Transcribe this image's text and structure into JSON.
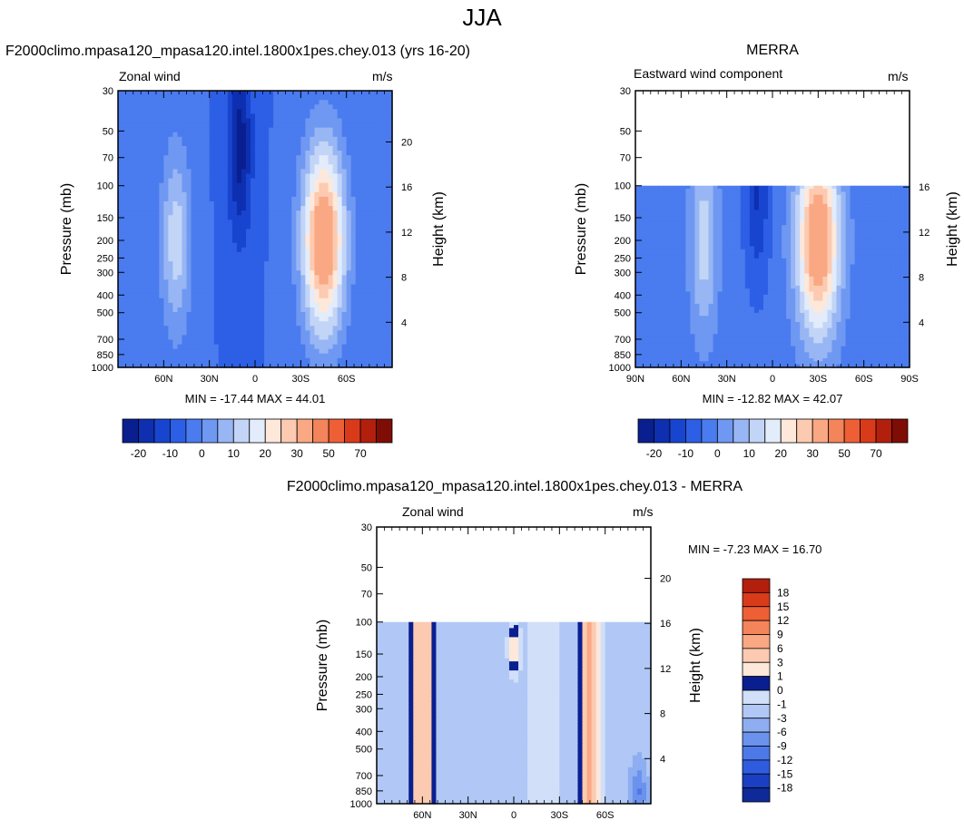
{
  "figure": {
    "title": "JJA",
    "colors": {
      "cold": [
        "#0a1f8f",
        "#0d2fb0",
        "#1845cf",
        "#2d5fe6",
        "#4a7bef",
        "#6f98f2",
        "#98b6f4",
        "#c2d5f7",
        "#e3ecfb"
      ],
      "warm": [
        "#fde8da",
        "#fccab0",
        "#f9a883",
        "#f4845a",
        "#ee5f35",
        "#d93b1a",
        "#b21f0c",
        "#7e0d05"
      ]
    }
  },
  "chart_data": [
    {
      "id": "p1",
      "type": "contour",
      "title": "F2000climo.mpasa120_mpasa120.intel.1800x1pes.chey.013 (yrs 16-20)",
      "left_string": "Zonal wind",
      "right_string": "m/s",
      "ylabel": "Pressure (mb)",
      "y2label": "Height (km)",
      "xlim": [
        90,
        -90
      ],
      "ylim": [
        1000,
        30
      ],
      "x_ticks": [
        60,
        30,
        0,
        -30,
        -60
      ],
      "x_tick_labels": [
        "60N",
        "30N",
        "0",
        "30S",
        "60S"
      ],
      "y_ticks": [
        30,
        50,
        70,
        100,
        150,
        200,
        250,
        300,
        400,
        500,
        700,
        850,
        1000
      ],
      "y_tick_labels": [
        "30",
        "50",
        "70",
        "100",
        "150",
        "200",
        "250",
        "300",
        "400",
        "500",
        "700",
        "850",
        "1000"
      ],
      "height_ticks": [
        20,
        16,
        12,
        8,
        4
      ],
      "height_tick_labels": [
        "20",
        "16",
        "12",
        "8",
        "4"
      ],
      "data_top_p": 30,
      "stats": "MIN = -17.44  MAX =  44.01",
      "colorbar": {
        "levels": [
          "-20",
          "-10",
          "0",
          "10",
          "20",
          "30",
          "50",
          "70"
        ]
      },
      "features": [
        {
          "kind": "background",
          "value": -5
        },
        {
          "kind": "jet",
          "lat": -45,
          "p": 200,
          "value": 44,
          "width": 14,
          "strength": 1.0
        },
        {
          "kind": "jet",
          "lat": 52,
          "p": 200,
          "value": 18,
          "width": 10,
          "strength": 0.8
        },
        {
          "kind": "easterly",
          "lat": 10,
          "p": 60,
          "value": -17.44,
          "width": 8
        }
      ]
    },
    {
      "id": "p2",
      "type": "contour",
      "title": "MERRA",
      "left_string": "Eastward wind component",
      "right_string": "m/s",
      "ylabel": "Pressure (mb)",
      "y2label": "Height (km)",
      "xlim": [
        90,
        -90
      ],
      "ylim": [
        1000,
        30
      ],
      "x_ticks": [
        90,
        60,
        30,
        0,
        -30,
        -60,
        -90
      ],
      "x_tick_labels": [
        "90N",
        "60N",
        "30N",
        "0",
        "30S",
        "60S",
        "90S"
      ],
      "y_ticks": [
        30,
        50,
        70,
        100,
        150,
        200,
        250,
        300,
        400,
        500,
        700,
        850,
        1000
      ],
      "y_tick_labels": [
        "30",
        "50",
        "70",
        "100",
        "150",
        "200",
        "250",
        "300",
        "400",
        "500",
        "700",
        "850",
        "1000"
      ],
      "height_ticks": [
        16,
        12,
        8,
        4
      ],
      "height_tick_labels": [
        "16",
        "12",
        "8",
        "4"
      ],
      "data_top_p": 100,
      "stats": "MIN = -12.82  MAX =  42.07",
      "colorbar": {
        "levels": [
          "-20",
          "-10",
          "0",
          "10",
          "20",
          "30",
          "50",
          "70"
        ]
      },
      "features": [
        {
          "kind": "background",
          "value": -3
        },
        {
          "kind": "jet",
          "lat": -30,
          "p": 200,
          "value": 42.07,
          "width": 14,
          "strength": 1.0
        },
        {
          "kind": "jet",
          "lat": 45,
          "p": 200,
          "value": 16,
          "width": 9,
          "strength": 0.8
        },
        {
          "kind": "easterly",
          "lat": 10,
          "p": 100,
          "value": -12.82,
          "width": 8
        }
      ]
    },
    {
      "id": "p3",
      "type": "contour",
      "title": "F2000climo.mpasa120_mpasa120.intel.1800x1pes.chey.013 - MERRA",
      "left_string": "Zonal wind",
      "right_string": "m/s",
      "ylabel": "Pressure (mb)",
      "y2label": "Height (km)",
      "xlim": [
        90,
        -90
      ],
      "ylim": [
        1000,
        30
      ],
      "x_ticks": [
        60,
        30,
        0,
        -30,
        -60
      ],
      "x_tick_labels": [
        "60N",
        "30N",
        "0",
        "30S",
        "60S"
      ],
      "y_ticks": [
        30,
        50,
        70,
        100,
        150,
        200,
        250,
        300,
        400,
        500,
        700,
        850,
        1000
      ],
      "y_tick_labels": [
        "30",
        "50",
        "70",
        "100",
        "150",
        "200",
        "250",
        "300",
        "400",
        "500",
        "700",
        "850",
        "1000"
      ],
      "height_ticks": [
        20,
        16,
        12,
        8,
        4
      ],
      "height_tick_labels": [
        "20",
        "16",
        "12",
        "8",
        "4"
      ],
      "data_top_p": 100,
      "stats": "MIN =  -7.23  MAX =  16.70",
      "colorbar": {
        "levels": [
          "18",
          "15",
          "12",
          "9",
          "6",
          "3",
          "1",
          "0",
          "-1",
          "-3",
          "-6",
          "-9",
          "-12",
          "-15",
          "-18"
        ]
      },
      "features": [
        {
          "kind": "background",
          "value": -2
        },
        {
          "kind": "band",
          "lat": 60,
          "value": 8,
          "width": 7
        },
        {
          "kind": "band",
          "lat": -50,
          "value": 9,
          "width": 6
        },
        {
          "kind": "band",
          "lat": -20,
          "value": 2,
          "width": 12
        },
        {
          "kind": "patch",
          "lat": 0,
          "p": 140,
          "value": 4,
          "width": 4
        },
        {
          "kind": "patch",
          "lat": -82,
          "p": 860,
          "value": -7.23,
          "width": 5
        }
      ]
    }
  ]
}
